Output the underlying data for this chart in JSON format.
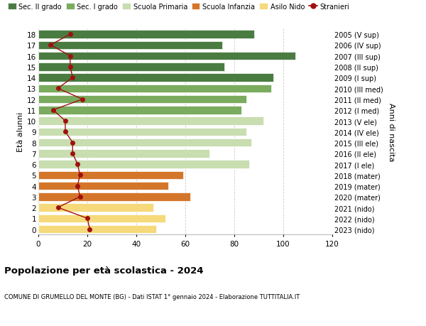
{
  "ages": [
    18,
    17,
    16,
    15,
    14,
    13,
    12,
    11,
    10,
    9,
    8,
    7,
    6,
    5,
    4,
    3,
    2,
    1,
    0
  ],
  "right_labels": [
    "2005 (V sup)",
    "2006 (IV sup)",
    "2007 (III sup)",
    "2008 (II sup)",
    "2009 (I sup)",
    "2010 (III med)",
    "2011 (II med)",
    "2012 (I med)",
    "2013 (V ele)",
    "2014 (IV ele)",
    "2015 (III ele)",
    "2016 (II ele)",
    "2017 (I ele)",
    "2018 (mater)",
    "2019 (mater)",
    "2020 (mater)",
    "2021 (nido)",
    "2022 (nido)",
    "2023 (nido)"
  ],
  "bar_values": [
    88,
    75,
    105,
    76,
    96,
    95,
    85,
    83,
    92,
    85,
    87,
    70,
    86,
    59,
    53,
    62,
    47,
    52,
    48
  ],
  "bar_colors": [
    "#4a7c42",
    "#4a7c42",
    "#4a7c42",
    "#4a7c42",
    "#4a7c42",
    "#7aab5e",
    "#7aab5e",
    "#7aab5e",
    "#c8ddb0",
    "#c8ddb0",
    "#c8ddb0",
    "#c8ddb0",
    "#c8ddb0",
    "#d4762a",
    "#d4762a",
    "#d4762a",
    "#f5d97a",
    "#f5d97a",
    "#f5d97a"
  ],
  "stranieri_values": [
    13,
    5,
    13,
    13,
    14,
    8,
    18,
    6,
    11,
    11,
    14,
    14,
    16,
    17,
    16,
    17,
    8,
    20,
    21
  ],
  "legend_labels": [
    "Sec. II grado",
    "Sec. I grado",
    "Scuola Primaria",
    "Scuola Infanzia",
    "Asilo Nido",
    "Stranieri"
  ],
  "legend_colors": [
    "#4a7c42",
    "#7aab5e",
    "#c8ddb0",
    "#d4762a",
    "#f5d97a",
    "#a01010"
  ],
  "title": "Popolazione per età scolastica - 2024",
  "subtitle": "COMUNE DI GRUMELLO DEL MONTE (BG) - Dati ISTAT 1° gennaio 2024 - Elaborazione TUTTITALIA.IT",
  "ylabel_left": "Età alunni",
  "ylabel_right": "Anni di nascita",
  "xlim": [
    0,
    120
  ],
  "xticks": [
    0,
    20,
    40,
    60,
    80,
    100,
    120
  ],
  "background_color": "#ffffff",
  "grid_color": "#cccccc",
  "bar_height": 0.75
}
